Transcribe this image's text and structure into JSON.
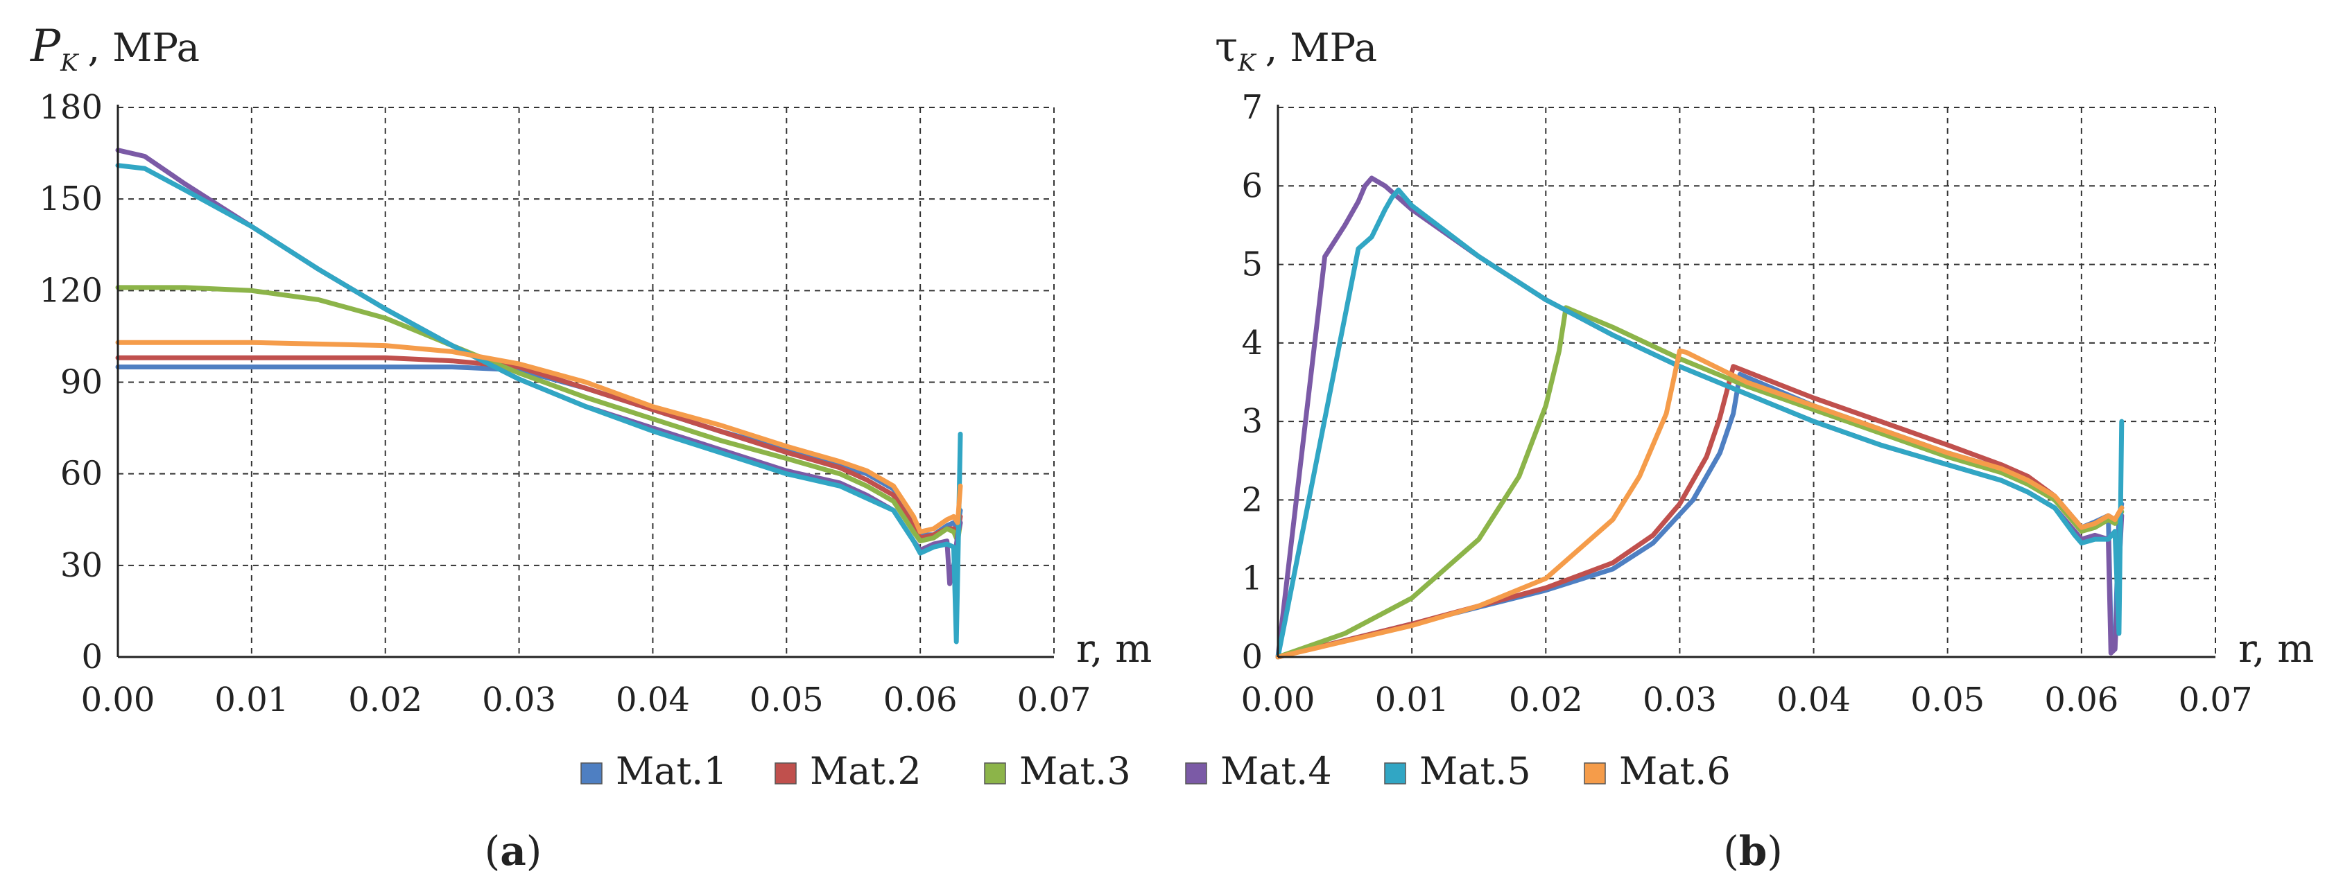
{
  "legend": {
    "entries": [
      {
        "label": "Mat.1",
        "color": "#4e7fc2"
      },
      {
        "label": "Mat.2",
        "color": "#c0504d"
      },
      {
        "label": "Mat.3",
        "color": "#8cb449"
      },
      {
        "label": "Mat.4",
        "color": "#7b5aa6"
      },
      {
        "label": "Mat.5",
        "color": "#31a6c4"
      },
      {
        "label": "Mat.6",
        "color": "#f59c4a"
      }
    ]
  },
  "chart_data": [
    {
      "type": "line",
      "panel_label": {
        "open": "(",
        "letter": "a",
        "close": ")"
      },
      "ylabel": {
        "symbol": "P",
        "subscript": "K",
        "unit": ", MPa"
      },
      "xlabel": "r, m",
      "xlim": [
        0,
        0.07
      ],
      "ylim": [
        0,
        180
      ],
      "xticks": [
        "0.00",
        "0.01",
        "0.02",
        "0.03",
        "0.04",
        "0.05",
        "0.06",
        "0.07"
      ],
      "yticks": [
        "0",
        "30",
        "60",
        "90",
        "120",
        "150",
        "180"
      ],
      "grid": true,
      "series": [
        {
          "name": "Mat.1",
          "x": [
            0,
            0.01,
            0.02,
            0.025,
            0.03,
            0.035,
            0.04,
            0.045,
            0.05,
            0.054,
            0.056,
            0.058,
            0.0595,
            0.06,
            0.061,
            0.062,
            0.0625,
            0.0628,
            0.063
          ],
          "y": [
            95,
            95,
            95,
            95,
            94,
            88,
            81,
            74,
            68,
            63,
            60,
            55,
            45,
            40,
            40,
            43,
            44,
            42,
            48
          ]
        },
        {
          "name": "Mat.2",
          "x": [
            0,
            0.01,
            0.02,
            0.025,
            0.03,
            0.035,
            0.04,
            0.045,
            0.05,
            0.054,
            0.056,
            0.058,
            0.0595,
            0.06,
            0.061,
            0.062,
            0.0625,
            0.0628,
            0.063
          ],
          "y": [
            98,
            98,
            98,
            97,
            95,
            88,
            81,
            74,
            67,
            62,
            58,
            53,
            43,
            39,
            40,
            42,
            42,
            40,
            46
          ]
        },
        {
          "name": "Mat.3",
          "x": [
            0,
            0.005,
            0.01,
            0.015,
            0.02,
            0.025,
            0.03,
            0.035,
            0.04,
            0.045,
            0.05,
            0.054,
            0.056,
            0.058,
            0.0595,
            0.06,
            0.061,
            0.062,
            0.0625,
            0.0628,
            0.063
          ],
          "y": [
            121,
            121,
            120,
            117,
            111,
            102,
            93,
            85,
            78,
            71,
            65,
            60,
            56,
            51,
            41,
            38,
            39,
            42,
            41,
            38,
            44
          ]
        },
        {
          "name": "Mat.4",
          "x": [
            0,
            0.002,
            0.005,
            0.01,
            0.015,
            0.02,
            0.025,
            0.03,
            0.035,
            0.04,
            0.045,
            0.05,
            0.054,
            0.056,
            0.058,
            0.0595,
            0.06,
            0.061,
            0.062,
            0.0622,
            0.0625,
            0.0628,
            0.063
          ],
          "y": [
            166,
            164,
            155,
            141,
            127,
            114,
            102,
            91,
            82,
            75,
            68,
            61,
            57,
            53,
            48,
            38,
            35,
            37,
            38,
            24,
            30,
            40,
            44
          ]
        },
        {
          "name": "Mat.5",
          "x": [
            0,
            0.002,
            0.005,
            0.01,
            0.015,
            0.02,
            0.025,
            0.03,
            0.035,
            0.04,
            0.045,
            0.05,
            0.054,
            0.056,
            0.058,
            0.0595,
            0.06,
            0.061,
            0.062,
            0.0625,
            0.0627,
            0.0629,
            0.063
          ],
          "y": [
            161,
            160,
            153,
            141,
            127,
            114,
            102,
            91,
            82,
            74,
            67,
            60,
            56,
            52,
            48,
            38,
            34,
            36,
            37,
            36,
            5,
            50,
            73
          ]
        },
        {
          "name": "Mat.6",
          "x": [
            0,
            0.01,
            0.02,
            0.025,
            0.03,
            0.035,
            0.04,
            0.045,
            0.05,
            0.054,
            0.056,
            0.058,
            0.0595,
            0.06,
            0.061,
            0.062,
            0.0625,
            0.0628,
            0.063
          ],
          "y": [
            103,
            103,
            102,
            100,
            96,
            90,
            82,
            76,
            69,
            64,
            61,
            56,
            46,
            41,
            42,
            45,
            46,
            44,
            56
          ]
        }
      ]
    },
    {
      "type": "line",
      "panel_label": {
        "open": "(",
        "letter": "b",
        "close": ")"
      },
      "ylabel": {
        "symbol": "τ",
        "subscript": "K",
        "unit": ", MPa"
      },
      "xlabel": "r, m",
      "xlim": [
        0,
        0.07
      ],
      "ylim": [
        0,
        7
      ],
      "xticks": [
        "0.00",
        "0.01",
        "0.02",
        "0.03",
        "0.04",
        "0.05",
        "0.06",
        "0.07"
      ],
      "yticks": [
        "0",
        "1",
        "2",
        "3",
        "4",
        "5",
        "6",
        "7"
      ],
      "grid": true,
      "series": [
        {
          "name": "Mat.1",
          "x": [
            0,
            0.01,
            0.02,
            0.025,
            0.028,
            0.031,
            0.033,
            0.034,
            0.0345,
            0.04,
            0.045,
            0.05,
            0.054,
            0.056,
            0.058,
            0.0595,
            0.06,
            0.061,
            0.062,
            0.0622,
            0.0625,
            0.0628,
            0.063
          ],
          "y": [
            0,
            0.42,
            0.85,
            1.12,
            1.45,
            2.0,
            2.6,
            3.1,
            3.6,
            3.2,
            2.9,
            2.6,
            2.4,
            2.25,
            2.0,
            1.75,
            1.65,
            1.72,
            1.8,
            0.3,
            0.1,
            1.8,
            1.95
          ]
        },
        {
          "name": "Mat.2",
          "x": [
            0,
            0.01,
            0.02,
            0.025,
            0.028,
            0.03,
            0.032,
            0.033,
            0.034,
            0.04,
            0.045,
            0.05,
            0.054,
            0.056,
            0.058,
            0.0595,
            0.06,
            0.061,
            0.062,
            0.0625,
            0.063
          ],
          "y": [
            0,
            0.42,
            0.88,
            1.2,
            1.55,
            1.95,
            2.55,
            3.05,
            3.7,
            3.3,
            3.0,
            2.7,
            2.45,
            2.3,
            2.05,
            1.75,
            1.65,
            1.7,
            1.8,
            1.75,
            1.9
          ]
        },
        {
          "name": "Mat.3",
          "x": [
            0,
            0.005,
            0.01,
            0.015,
            0.018,
            0.02,
            0.021,
            0.0215,
            0.025,
            0.03,
            0.035,
            0.04,
            0.045,
            0.05,
            0.054,
            0.056,
            0.058,
            0.0595,
            0.06,
            0.061,
            0.062,
            0.0625,
            0.063
          ],
          "y": [
            0,
            0.3,
            0.75,
            1.5,
            2.3,
            3.2,
            3.9,
            4.45,
            4.2,
            3.8,
            3.45,
            3.15,
            2.85,
            2.55,
            2.35,
            2.2,
            2.0,
            1.7,
            1.6,
            1.65,
            1.75,
            1.7,
            1.85
          ]
        },
        {
          "name": "Mat.4",
          "x": [
            0,
            0.0035,
            0.005,
            0.006,
            0.0065,
            0.007,
            0.008,
            0.01,
            0.015,
            0.02,
            0.025,
            0.03,
            0.035,
            0.04,
            0.045,
            0.05,
            0.054,
            0.056,
            0.058,
            0.0595,
            0.06,
            0.061,
            0.062,
            0.0622,
            0.0625,
            0.063
          ],
          "y": [
            0,
            5.1,
            5.5,
            5.8,
            6.0,
            6.1,
            6.0,
            5.7,
            5.1,
            4.55,
            4.1,
            3.7,
            3.35,
            3.0,
            2.7,
            2.45,
            2.25,
            2.1,
            1.9,
            1.6,
            1.5,
            1.55,
            1.5,
            0.05,
            0.1,
            1.8
          ]
        },
        {
          "name": "Mat.5",
          "x": [
            0,
            0.006,
            0.007,
            0.008,
            0.0085,
            0.009,
            0.01,
            0.015,
            0.02,
            0.025,
            0.03,
            0.035,
            0.04,
            0.045,
            0.05,
            0.054,
            0.056,
            0.058,
            0.0595,
            0.06,
            0.061,
            0.062,
            0.0625,
            0.0628,
            0.063
          ],
          "y": [
            0,
            5.2,
            5.35,
            5.7,
            5.85,
            5.95,
            5.75,
            5.1,
            4.55,
            4.1,
            3.7,
            3.35,
            3.0,
            2.7,
            2.45,
            2.25,
            2.1,
            1.9,
            1.55,
            1.45,
            1.5,
            1.5,
            1.6,
            0.3,
            3.0
          ]
        },
        {
          "name": "Mat.6",
          "x": [
            0,
            0.01,
            0.015,
            0.02,
            0.025,
            0.027,
            0.029,
            0.0295,
            0.03,
            0.0305,
            0.035,
            0.04,
            0.045,
            0.05,
            0.054,
            0.056,
            0.058,
            0.0595,
            0.06,
            0.061,
            0.062,
            0.0625,
            0.063
          ],
          "y": [
            0,
            0.4,
            0.65,
            1.0,
            1.75,
            2.3,
            3.1,
            3.5,
            3.9,
            3.88,
            3.5,
            3.2,
            2.9,
            2.6,
            2.4,
            2.25,
            2.05,
            1.75,
            1.65,
            1.7,
            1.8,
            1.75,
            1.9
          ]
        }
      ]
    }
  ]
}
